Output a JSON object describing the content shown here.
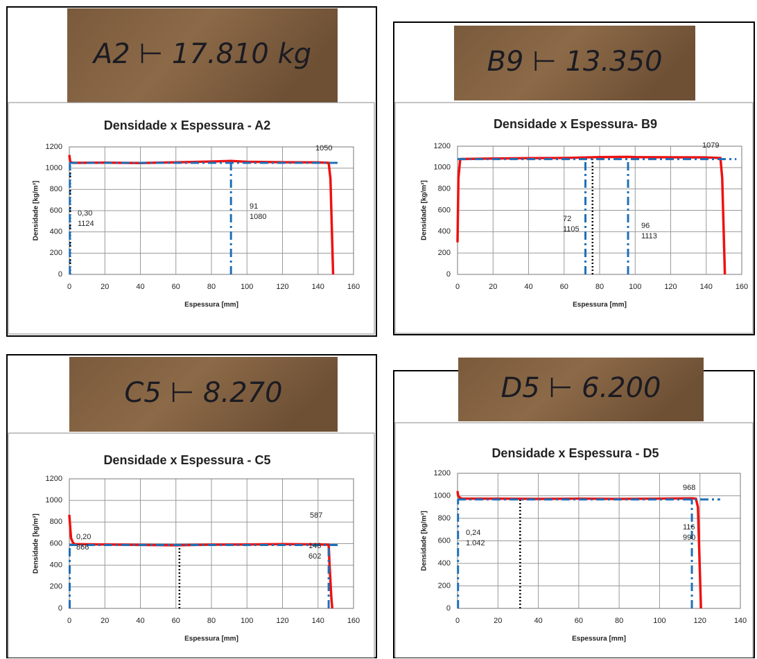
{
  "photos": [
    "A2 ⊢ 17.810 kg",
    "B9 ⊢ 13.350",
    "C5 ⊢ 8.270",
    "D5 ⊢ 6.200"
  ],
  "chart_data": [
    {
      "type": "line",
      "title": "Densidade x Espessura - A2",
      "xlabel": "Espessura [mm]",
      "ylabel": "Densidade [kg/m³]",
      "color": "#ee1111",
      "x": [
        0,
        0.5,
        2,
        20,
        40,
        60,
        80,
        91,
        100,
        120,
        140,
        146,
        147,
        147.5,
        148,
        148.5
      ],
      "values": [
        1124,
        1060,
        1050,
        1052,
        1048,
        1055,
        1062,
        1068,
        1060,
        1056,
        1054,
        1050,
        900,
        600,
        300,
        0
      ],
      "xlim": [
        0,
        160
      ],
      "xticks": [
        0,
        20,
        40,
        60,
        80,
        100,
        120,
        140,
        160
      ],
      "ylim": [
        0,
        1200
      ],
      "yticks": [
        0,
        200,
        400,
        600,
        800,
        1000,
        1200
      ],
      "grid": true,
      "hline": {
        "y": 1050,
        "x_end": 153
      },
      "vlines": [
        0.3,
        91
      ],
      "dotted": {
        "x": 0.5,
        "y": 1050
      },
      "annotations": [
        [
          "0,30",
          "1124"
        ],
        [
          "91",
          "1080"
        ],
        [
          "1050"
        ]
      ]
    },
    {
      "type": "line",
      "title": "Densidade x Espessura- B9",
      "xlabel": "Espessura  [mm]",
      "ylabel": "Densidade [kg/m³]",
      "color": "#ee1111",
      "x": [
        0,
        0.5,
        1.5,
        20,
        40,
        60,
        72,
        80,
        96,
        100,
        120,
        140,
        148,
        149,
        149.5,
        150,
        150.5
      ],
      "values": [
        300,
        900,
        1080,
        1085,
        1088,
        1090,
        1095,
        1098,
        1100,
        1098,
        1096,
        1095,
        1090,
        900,
        600,
        300,
        0
      ],
      "xlim": [
        0,
        160
      ],
      "xticks": [
        0,
        20,
        40,
        60,
        80,
        100,
        120,
        140,
        160
      ],
      "ylim": [
        0,
        1200
      ],
      "yticks": [
        0,
        200,
        400,
        600,
        800,
        1000,
        1200
      ],
      "grid": true,
      "hline": {
        "y": 1079,
        "x_end": 157
      },
      "vlines": [
        72,
        96
      ],
      "dotted": {
        "x": 76,
        "y": 1079
      },
      "annotations": [
        [
          "72",
          "1105"
        ],
        [
          "96",
          "1113"
        ],
        [
          "1079"
        ]
      ]
    },
    {
      "type": "line",
      "title": "Densidade x Espessura - C5",
      "xlabel": "Espessura [mm]",
      "ylabel": "Densidade [kg/m³]",
      "color": "#ee1111",
      "x": [
        0,
        0.5,
        1,
        2,
        3,
        20,
        40,
        60,
        80,
        100,
        120,
        140,
        146,
        146.5,
        147,
        147.5,
        148
      ],
      "values": [
        866,
        750,
        650,
        610,
        595,
        592,
        588,
        585,
        590,
        592,
        595,
        593,
        590,
        400,
        250,
        100,
        0
      ],
      "xlim": [
        0,
        160
      ],
      "xticks": [
        0,
        20,
        40,
        60,
        80,
        100,
        120,
        140,
        160
      ],
      "ylim": [
        0,
        1200
      ],
      "yticks": [
        0,
        200,
        400,
        600,
        800,
        1000,
        1200
      ],
      "grid": true,
      "hline": {
        "y": 587,
        "x_end": 152
      },
      "vlines": [
        0.2,
        146
      ],
      "dotted": {
        "x": 62,
        "y": 587
      },
      "annotations": [
        [
          "0,20",
          "866"
        ],
        [
          "146",
          "602"
        ],
        [
          "587"
        ]
      ]
    },
    {
      "type": "line",
      "title": "Densidade x Espessura - D5",
      "xlabel": "Espessura [mm]",
      "ylabel": "Densidade [kg/m³]",
      "color": "#ee1111",
      "x": [
        0,
        0.3,
        1,
        2,
        20,
        40,
        60,
        80,
        100,
        116,
        118,
        119,
        119.5,
        120,
        120.5
      ],
      "values": [
        1042,
        1000,
        985,
        975,
        975,
        972,
        975,
        972,
        975,
        978,
        975,
        900,
        600,
        300,
        0
      ],
      "xlim": [
        0,
        140
      ],
      "xticks": [
        0,
        20,
        40,
        60,
        80,
        100,
        120,
        140
      ],
      "ylim": [
        0,
        1200
      ],
      "yticks": [
        0,
        200,
        400,
        600,
        800,
        1000,
        1200
      ],
      "grid": true,
      "hline": {
        "y": 968,
        "x_end": 130
      },
      "vlines": [
        0.24,
        116
      ],
      "dotted": {
        "x": 31,
        "y": 968
      },
      "annotations": [
        [
          "0,24",
          "1.042"
        ],
        [
          "116",
          "990"
        ],
        [
          "968"
        ]
      ]
    }
  ]
}
